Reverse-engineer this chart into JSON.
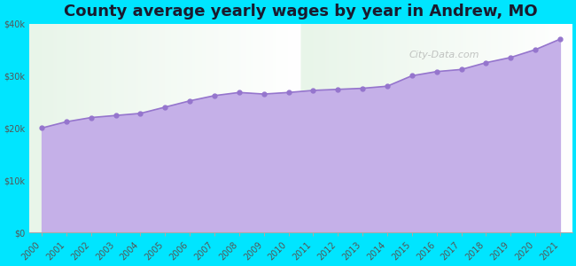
{
  "title": "County average yearly wages by year in Andrew, MO",
  "years": [
    2000,
    2001,
    2002,
    2003,
    2004,
    2005,
    2006,
    2007,
    2008,
    2009,
    2010,
    2011,
    2012,
    2013,
    2014,
    2015,
    2016,
    2017,
    2018,
    2019,
    2020,
    2021
  ],
  "wages": [
    20000,
    21200,
    22000,
    22400,
    22800,
    24000,
    25200,
    26200,
    26800,
    26500,
    26800,
    27200,
    27400,
    27600,
    28000,
    30000,
    30800,
    31200,
    32500,
    33500,
    35000,
    37000
  ],
  "marker_color": "#9575cd",
  "fill_purple": "#c5b0e8",
  "background_color": "#00e5ff",
  "plot_bg_gradient_top": "#e8f5e9",
  "plot_bg_gradient_bottom": "#ffffff",
  "title_fontsize": 13,
  "title_color": "#1a1a2e",
  "ylim": [
    0,
    40000
  ],
  "yticks": [
    0,
    10000,
    20000,
    30000,
    40000
  ],
  "ytick_labels": [
    "$0",
    "$10k",
    "$20k",
    "$30k",
    "$40k"
  ],
  "watermark": "City-Data.com",
  "tick_label_color": "#555555",
  "tick_label_fontsize": 7
}
